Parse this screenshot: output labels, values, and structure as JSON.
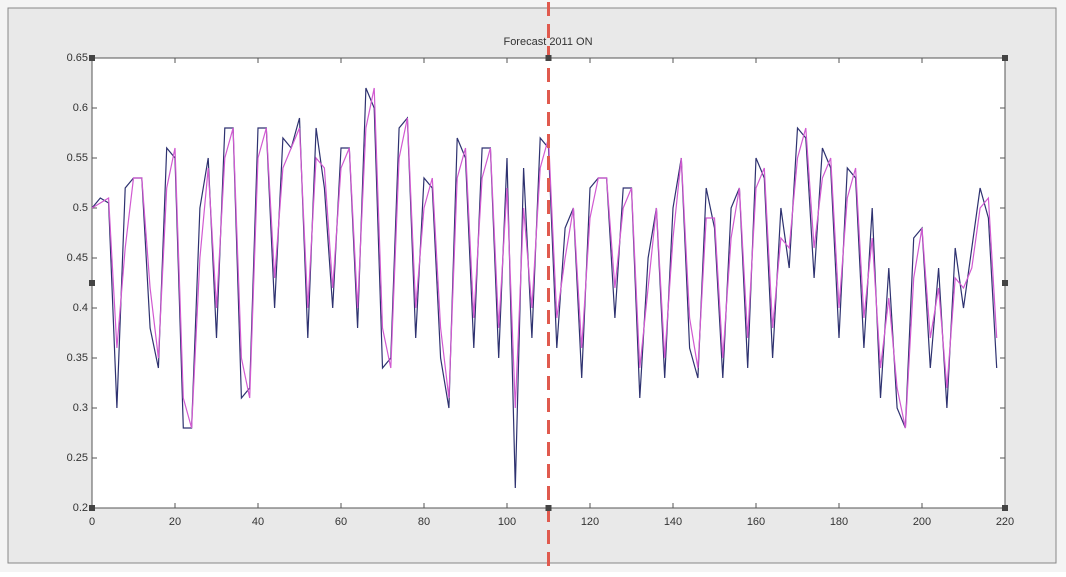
{
  "chart_data": {
    "type": "line",
    "title": "Forecast 2011 ON",
    "x": [
      0,
      2,
      4,
      6,
      8,
      10,
      12,
      14,
      16,
      18,
      20,
      22,
      24,
      26,
      28,
      30,
      32,
      34,
      36,
      38,
      40,
      42,
      44,
      46,
      48,
      50,
      52,
      54,
      56,
      58,
      60,
      62,
      64,
      66,
      68,
      70,
      72,
      74,
      76,
      78,
      80,
      82,
      84,
      86,
      88,
      90,
      92,
      94,
      96,
      98,
      100,
      102,
      104,
      106,
      108,
      110,
      112,
      114,
      116,
      118,
      120,
      122,
      124,
      126,
      128,
      130,
      132,
      134,
      136,
      138,
      140,
      142,
      144,
      146,
      148,
      150,
      152,
      154,
      156,
      158,
      160,
      162,
      164,
      166,
      168,
      170,
      172,
      174,
      176,
      178,
      180,
      182,
      184,
      186,
      188,
      190,
      192,
      194,
      196,
      198,
      200,
      202,
      204,
      206,
      208,
      210,
      212,
      214,
      216,
      218
    ],
    "series": [
      {
        "color": "#2e3270",
        "values": [
          0.5,
          0.51,
          0.505,
          0.3,
          0.52,
          0.53,
          0.53,
          0.38,
          0.34,
          0.56,
          0.55,
          0.28,
          0.28,
          0.5,
          0.55,
          0.37,
          0.58,
          0.58,
          0.31,
          0.32,
          0.58,
          0.58,
          0.4,
          0.57,
          0.56,
          0.59,
          0.37,
          0.58,
          0.52,
          0.4,
          0.56,
          0.56,
          0.38,
          0.62,
          0.6,
          0.34,
          0.35,
          0.58,
          0.59,
          0.37,
          0.53,
          0.52,
          0.35,
          0.3,
          0.57,
          0.55,
          0.36,
          0.56,
          0.56,
          0.35,
          0.55,
          0.22,
          0.54,
          0.37,
          0.57,
          0.56,
          0.36,
          0.48,
          0.5,
          0.33,
          0.52,
          0.53,
          0.53,
          0.39,
          0.52,
          0.52,
          0.31,
          0.45,
          0.5,
          0.33,
          0.5,
          0.55,
          0.36,
          0.33,
          0.52,
          0.48,
          0.33,
          0.5,
          0.52,
          0.34,
          0.55,
          0.53,
          0.35,
          0.5,
          0.44,
          0.58,
          0.57,
          0.43,
          0.56,
          0.54,
          0.37,
          0.54,
          0.53,
          0.36,
          0.5,
          0.31,
          0.44,
          0.3,
          0.28,
          0.47,
          0.48,
          0.34,
          0.44,
          0.3,
          0.46,
          0.4,
          0.46,
          0.52,
          0.49,
          0.34
        ]
      },
      {
        "color": "#d15ad1",
        "values": [
          0.5,
          0.505,
          0.51,
          0.36,
          0.46,
          0.53,
          0.53,
          0.42,
          0.35,
          0.52,
          0.56,
          0.31,
          0.28,
          0.45,
          0.54,
          0.4,
          0.55,
          0.58,
          0.35,
          0.31,
          0.55,
          0.58,
          0.43,
          0.54,
          0.56,
          0.58,
          0.4,
          0.55,
          0.54,
          0.42,
          0.54,
          0.56,
          0.4,
          0.58,
          0.62,
          0.38,
          0.34,
          0.55,
          0.59,
          0.4,
          0.5,
          0.53,
          0.38,
          0.31,
          0.53,
          0.56,
          0.39,
          0.53,
          0.56,
          0.38,
          0.52,
          0.3,
          0.5,
          0.4,
          0.54,
          0.57,
          0.39,
          0.45,
          0.5,
          0.36,
          0.49,
          0.53,
          0.53,
          0.42,
          0.5,
          0.52,
          0.34,
          0.42,
          0.5,
          0.35,
          0.47,
          0.55,
          0.39,
          0.34,
          0.49,
          0.49,
          0.35,
          0.47,
          0.52,
          0.37,
          0.52,
          0.54,
          0.38,
          0.47,
          0.46,
          0.55,
          0.58,
          0.46,
          0.53,
          0.55,
          0.4,
          0.51,
          0.54,
          0.39,
          0.47,
          0.34,
          0.41,
          0.32,
          0.28,
          0.43,
          0.48,
          0.37,
          0.42,
          0.32,
          0.43,
          0.42,
          0.44,
          0.5,
          0.51,
          0.37
        ]
      }
    ],
    "xlim": [
      0,
      220
    ],
    "xticks": [
      0,
      20,
      40,
      60,
      80,
      100,
      120,
      140,
      160,
      180,
      200,
      220
    ],
    "ylim": [
      0.2,
      0.65
    ],
    "yticks": [
      0.2,
      0.25,
      0.3,
      0.35,
      0.4,
      0.45,
      0.5,
      0.55,
      0.6,
      0.65
    ],
    "vline": {
      "x": 110,
      "color": "#e05a4e"
    }
  }
}
